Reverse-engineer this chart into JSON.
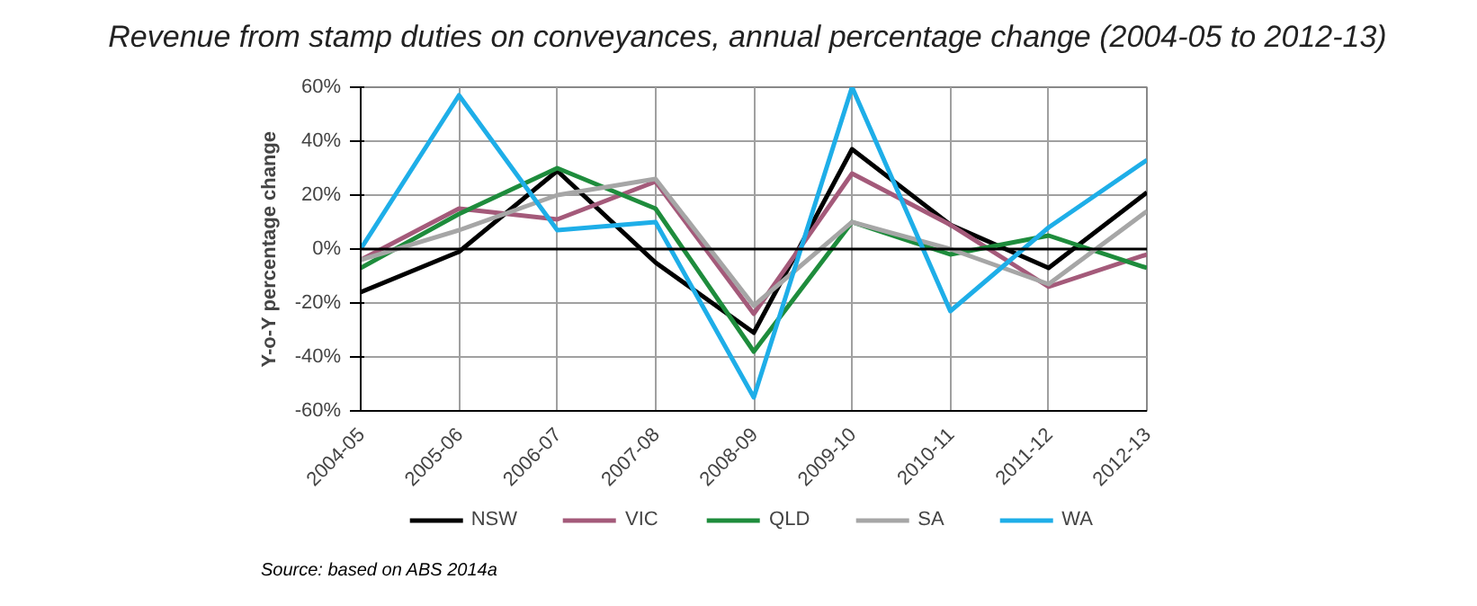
{
  "chart_data": {
    "type": "line",
    "title": "Revenue from stamp duties on conveyances, annual percentage change (2004-05 to 2012-13)",
    "ylabel": "Y-o-Y percentage change",
    "categories": [
      "2004-05",
      "2005-06",
      "2006-07",
      "2007-08",
      "2008-09",
      "2009-10",
      "2010-11",
      "2011-12",
      "2012-13"
    ],
    "series": [
      {
        "name": "NSW",
        "color": "#000000",
        "values": [
          -16,
          -1,
          29,
          -5,
          -31,
          37,
          9,
          -7,
          21
        ]
      },
      {
        "name": "VIC",
        "color": "#a45a7a",
        "values": [
          -4,
          15,
          11,
          25,
          -24,
          28,
          9,
          -14,
          -2
        ]
      },
      {
        "name": "QLD",
        "color": "#1e8c3c",
        "values": [
          -7,
          13,
          30,
          15,
          -38,
          10,
          -2,
          5,
          -7
        ]
      },
      {
        "name": "SA",
        "color": "#a6a6a6",
        "values": [
          -4,
          7,
          20,
          26,
          -21,
          10,
          0,
          -13,
          14
        ]
      },
      {
        "name": "WA",
        "color": "#1eaee8",
        "values": [
          0,
          57,
          7,
          10,
          -55,
          60,
          -23,
          8,
          33
        ]
      }
    ],
    "ylim": [
      -60,
      60
    ],
    "yticks": [
      {
        "value": -60,
        "label": "-60%"
      },
      {
        "value": -40,
        "label": "-40%"
      },
      {
        "value": -20,
        "label": "-20%"
      },
      {
        "value": 0,
        "label": "0%"
      },
      {
        "value": 20,
        "label": "20%"
      },
      {
        "value": 40,
        "label": "40%"
      },
      {
        "value": 60,
        "label": "60%"
      }
    ],
    "ref_lines": [
      {
        "axis": "y",
        "value": 0,
        "color": "#000000"
      }
    ],
    "grid": true,
    "legend": "bottom",
    "marker": "none",
    "line_style": "solid",
    "annotations": [
      "Source: based on ABS 2014a"
    ]
  }
}
